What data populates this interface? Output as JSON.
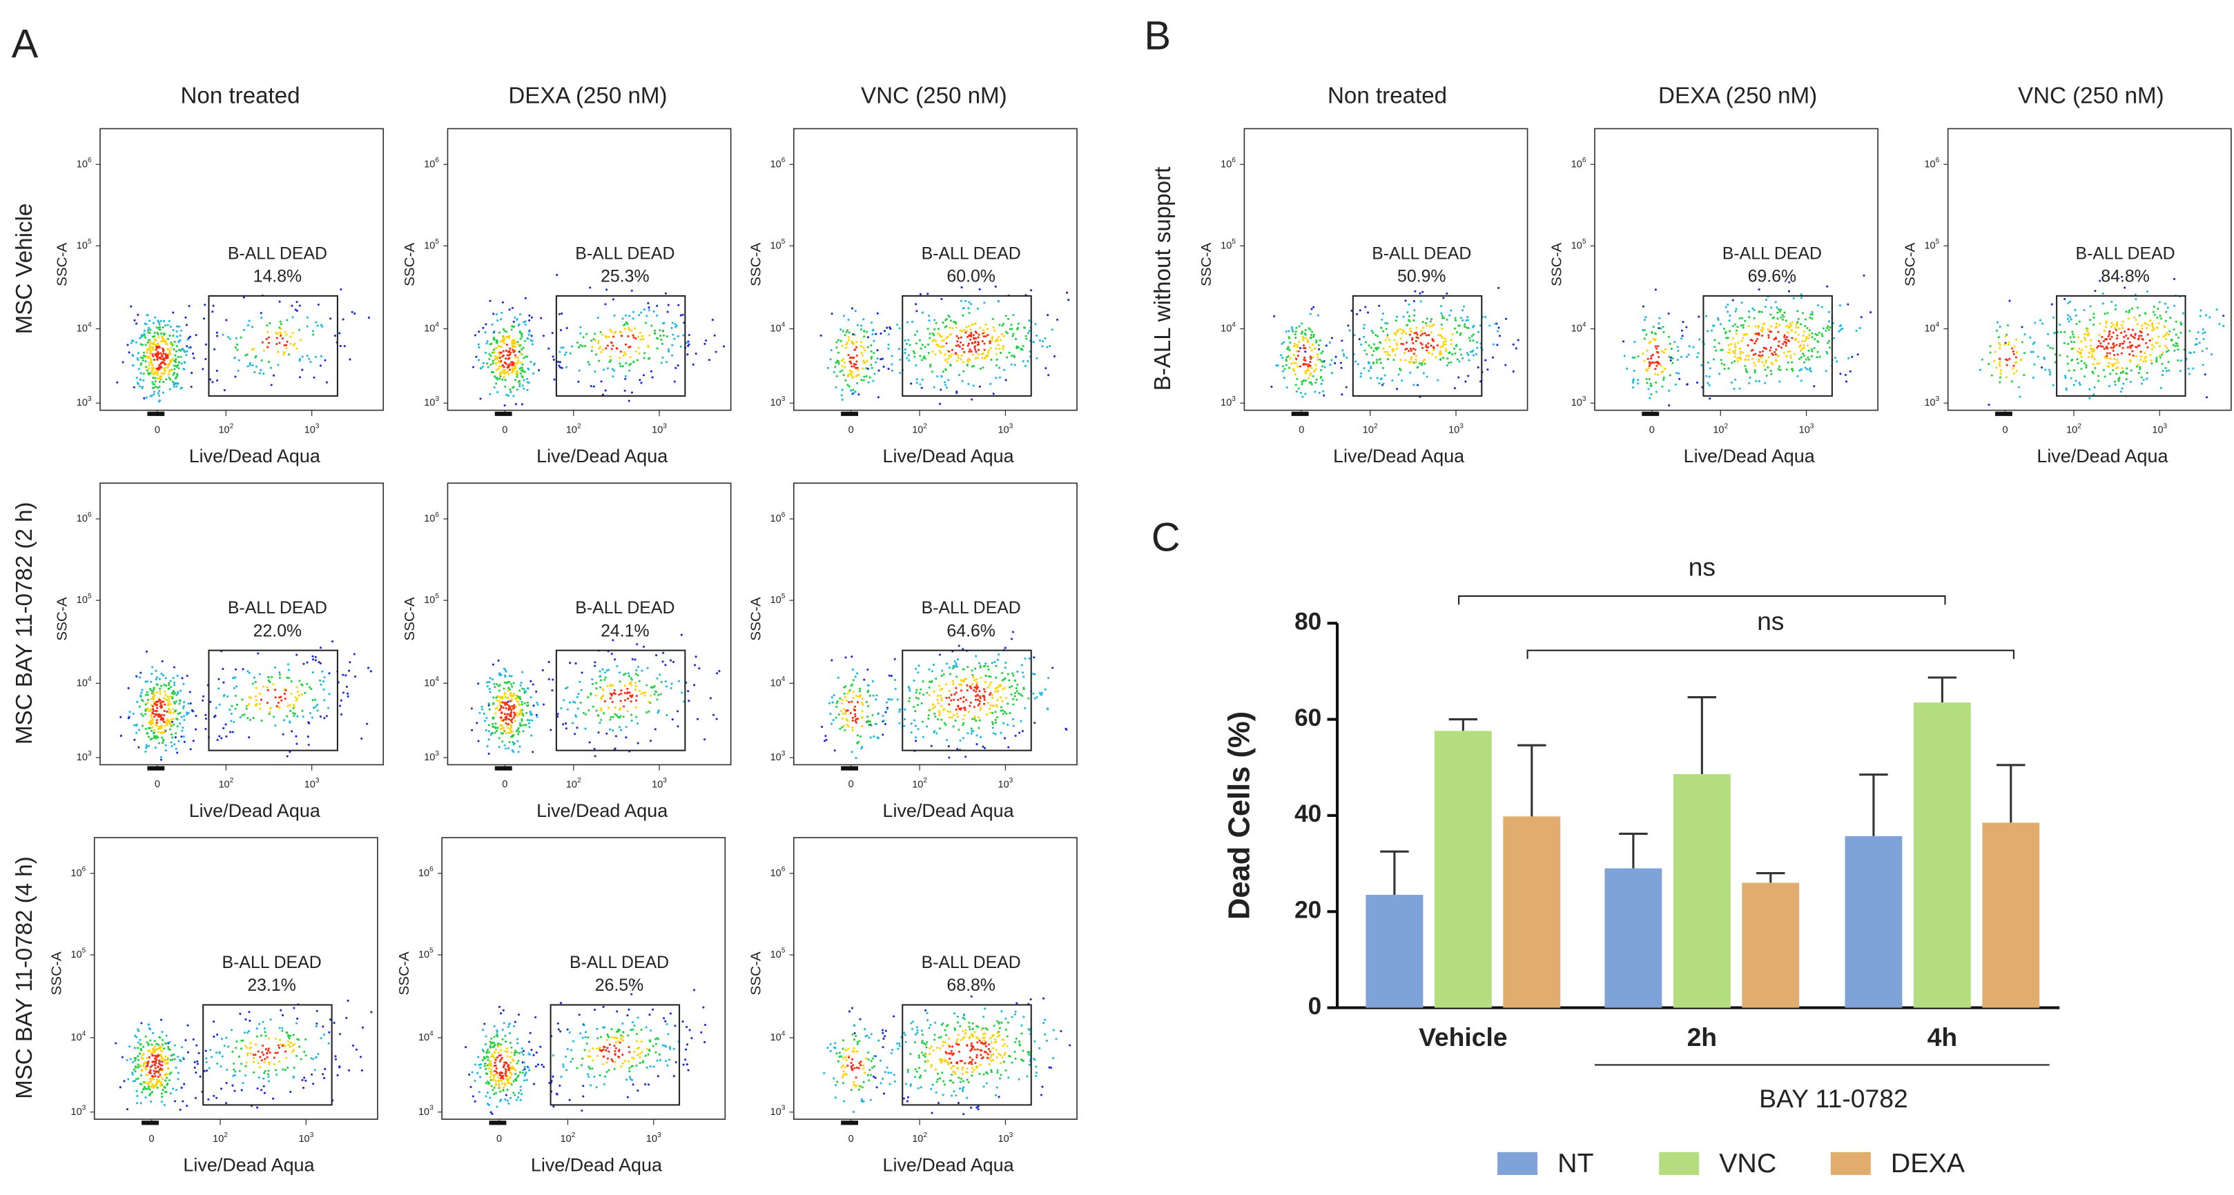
{
  "panel_letters": [
    "A",
    "B",
    "C"
  ],
  "flow": {
    "y_axis_label": "SSC-A",
    "x_axis_label": "Live/Dead Aqua",
    "gate_label": "B-ALL DEAD",
    "yticks": [
      {
        "base": "10",
        "exp": "6"
      },
      {
        "base": "10",
        "exp": "5"
      },
      {
        "base": "10",
        "exp": "4"
      },
      {
        "base": "10",
        "exp": "3"
      }
    ],
    "xticks": [
      "0",
      {
        "base": "10",
        "exp": "2"
      },
      {
        "base": "10",
        "exp": "3"
      }
    ],
    "panel_a": {
      "column_titles": [
        "Non treated",
        "DEXA (250 nM)",
        "VNC (250 nM)"
      ],
      "row_labels": [
        "MSC  Vehicle",
        "MSC  BAY 11-0782 (2 h)",
        "MSC  BAY 11-0782 (4 h)"
      ],
      "percentages": [
        [
          "14.8%",
          "25.3%",
          "60.0%"
        ],
        [
          "22.0%",
          "24.1%",
          "64.6%"
        ],
        [
          "23.1%",
          "26.5%",
          "68.8%"
        ]
      ]
    },
    "panel_b": {
      "column_titles": [
        "Non treated",
        "DEXA (250 nM)",
        "VNC (250 nM)"
      ],
      "row_label": "B-ALL without support",
      "percentages": [
        "50.9%",
        "69.6%",
        "84.8%"
      ]
    }
  },
  "chart_data": {
    "type": "bar",
    "ylabel": "Dead Cells (%)",
    "categories": [
      "Vehicle",
      "2h",
      "4h"
    ],
    "group_label": "BAY 11-0782",
    "series": [
      {
        "name": "NT",
        "color": "#7fa3d8",
        "values": [
          23.5,
          29,
          35.7
        ],
        "errors": [
          9,
          7.2,
          12.8
        ]
      },
      {
        "name": "VNC",
        "color": "#b3dd7f",
        "values": [
          57.6,
          48.6,
          63.5
        ],
        "errors": [
          2.4,
          16,
          5.2
        ]
      },
      {
        "name": "DEXA",
        "color": "#e0ad6e",
        "values": [
          39.8,
          26,
          38.5
        ],
        "errors": [
          14.8,
          2,
          12
        ]
      }
    ],
    "ylim": [
      0,
      80
    ],
    "yticks": [
      0,
      20,
      40,
      60,
      80
    ],
    "annotations": [
      {
        "text": "ns"
      },
      {
        "text": "ns"
      }
    ]
  }
}
